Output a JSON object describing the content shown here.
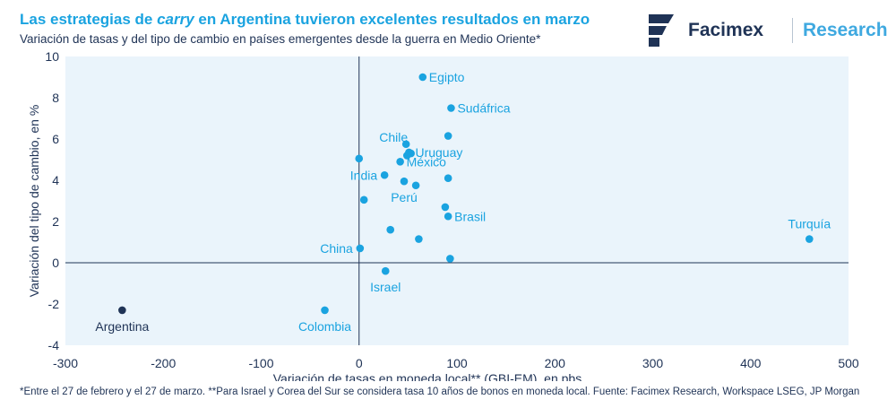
{
  "header": {
    "title_pre": "Las estrategias de ",
    "title_em": "carry",
    "title_post": " en Argentina tuvieron excelentes resultados en marzo",
    "subtitle": "Variación de tasas y del tipo de cambio en países emergentes desde la guerra en Medio Oriente*"
  },
  "brand": {
    "name": "Facimex",
    "unit": "Research",
    "logo_icon": "facimex-logo-icon",
    "colors": {
      "dark": "#1f3356",
      "accent": "#3fa9e0"
    }
  },
  "footnote": "*Entre el 27 de febrero y el 27 de marzo. **Para Israel y Corea del Sur se considera tasa 10 años de bonos en moneda local. Fuente: Facimex Research, Workspace LSEG, JP Morgan",
  "chart_data": {
    "type": "scatter",
    "title": "Las estrategias de carry en Argentina tuvieron excelentes resultados en marzo",
    "xlabel": "Variación de tasas en moneda local** (GBI-EM), en pbs",
    "ylabel": "Variación del tipo de cambio, en %",
    "xlim": [
      -300,
      500
    ],
    "ylim": [
      -4,
      10
    ],
    "xticks": [
      -300,
      -200,
      -100,
      0,
      100,
      200,
      300,
      400,
      500
    ],
    "yticks": [
      -4,
      -2,
      0,
      2,
      4,
      6,
      8,
      10
    ],
    "plot_background": "#eaf4fb",
    "point_color": "#1aa3e0",
    "highlight_color": "#1f3356",
    "points": [
      {
        "label": "Argentina",
        "x": -242,
        "y": -2.3,
        "highlight": true,
        "anchor": "below"
      },
      {
        "label": "Colombia",
        "x": -35,
        "y": -2.3,
        "anchor": "below"
      },
      {
        "label": "China",
        "x": 1,
        "y": 0.7,
        "anchor": "left"
      },
      {
        "label": "Israel",
        "x": 27,
        "y": -0.4,
        "anchor": "below"
      },
      {
        "label": "India",
        "x": 26,
        "y": 4.25,
        "anchor": "left"
      },
      {
        "label": "Perú",
        "x": 46,
        "y": 3.95,
        "anchor": "below"
      },
      {
        "label": "Chile",
        "x": 48,
        "y": 5.75,
        "anchor": "topleft"
      },
      {
        "label": "Uruguay",
        "x": 51,
        "y": 5.35,
        "anchor": "right"
      },
      {
        "label": "México",
        "x": 42,
        "y": 4.9,
        "anchor": "right"
      },
      {
        "label": "Egipto",
        "x": 65,
        "y": 9.0,
        "anchor": "right"
      },
      {
        "label": "Sudáfrica",
        "x": 94,
        "y": 7.5,
        "anchor": "right"
      },
      {
        "label": "Brasil",
        "x": 91,
        "y": 2.25,
        "anchor": "right"
      },
      {
        "label": "Turquía",
        "x": 460,
        "y": 1.15,
        "anchor": "above"
      },
      {
        "label": "",
        "x": 0,
        "y": 5.05
      },
      {
        "label": "",
        "x": 5,
        "y": 3.05
      },
      {
        "label": "",
        "x": 32,
        "y": 1.6
      },
      {
        "label": "",
        "x": 61,
        "y": 1.15
      },
      {
        "label": "",
        "x": 93,
        "y": 0.2
      },
      {
        "label": "",
        "x": 58,
        "y": 3.75
      },
      {
        "label": "",
        "x": 88,
        "y": 2.7
      },
      {
        "label": "",
        "x": 91,
        "y": 4.1
      },
      {
        "label": "",
        "x": 91,
        "y": 6.15
      },
      {
        "label": "",
        "x": 53,
        "y": 5.3
      },
      {
        "label": "",
        "x": 49,
        "y": 5.2
      }
    ]
  }
}
